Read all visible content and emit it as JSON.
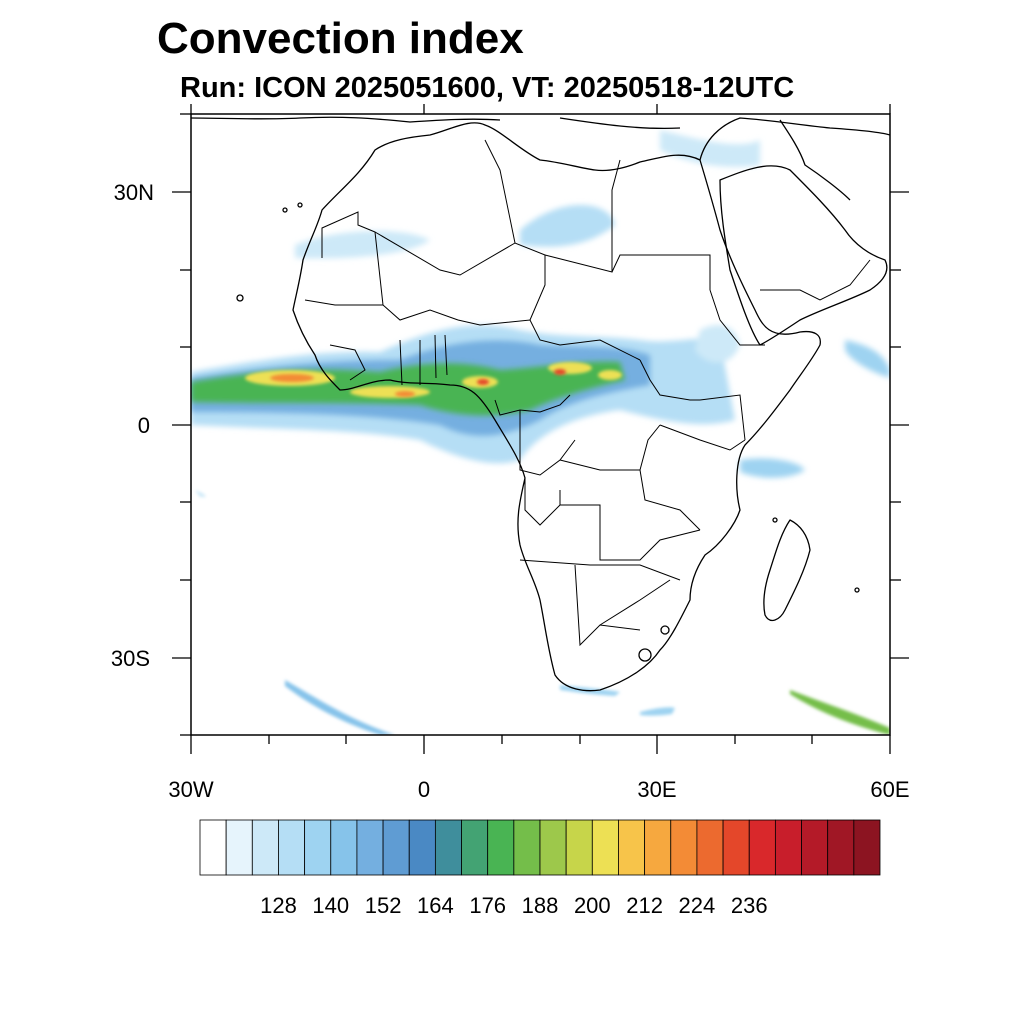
{
  "title": "Convection index",
  "subtitle": "Run: ICON 2025051600,  VT: 20250518-12UTC",
  "axes": {
    "lon_labels": [
      "30W",
      "0",
      "30E",
      "60E"
    ],
    "lat_labels": [
      "30N",
      "0",
      "30S"
    ],
    "lon_range": [
      -30,
      60
    ],
    "lat_range": [
      -40,
      40
    ]
  },
  "colorbar": {
    "tick_labels": [
      "128",
      "140",
      "152",
      "164",
      "176",
      "188",
      "200",
      "212",
      "224",
      "236"
    ],
    "colors": [
      "#ffffff",
      "#e6f4fc",
      "#cde9f8",
      "#b5def5",
      "#9ed3f1",
      "#86c3ea",
      "#74afe0",
      "#5f9cd3",
      "#4a89c4",
      "#3f8e9c",
      "#43a373",
      "#49b453",
      "#74be4a",
      "#9dc84b",
      "#c7d54a",
      "#ede054",
      "#f7c44a",
      "#f6a83f",
      "#f38b36",
      "#ec6a2f",
      "#e4472a",
      "#d9282b",
      "#c81e2b",
      "#b41a28",
      "#a01725",
      "#8c1421"
    ]
  },
  "legend_colors": {
    "low": "#9ed3f1",
    "mid": "#49b453",
    "high": "#ede054",
    "peak": "#e4472a"
  }
}
